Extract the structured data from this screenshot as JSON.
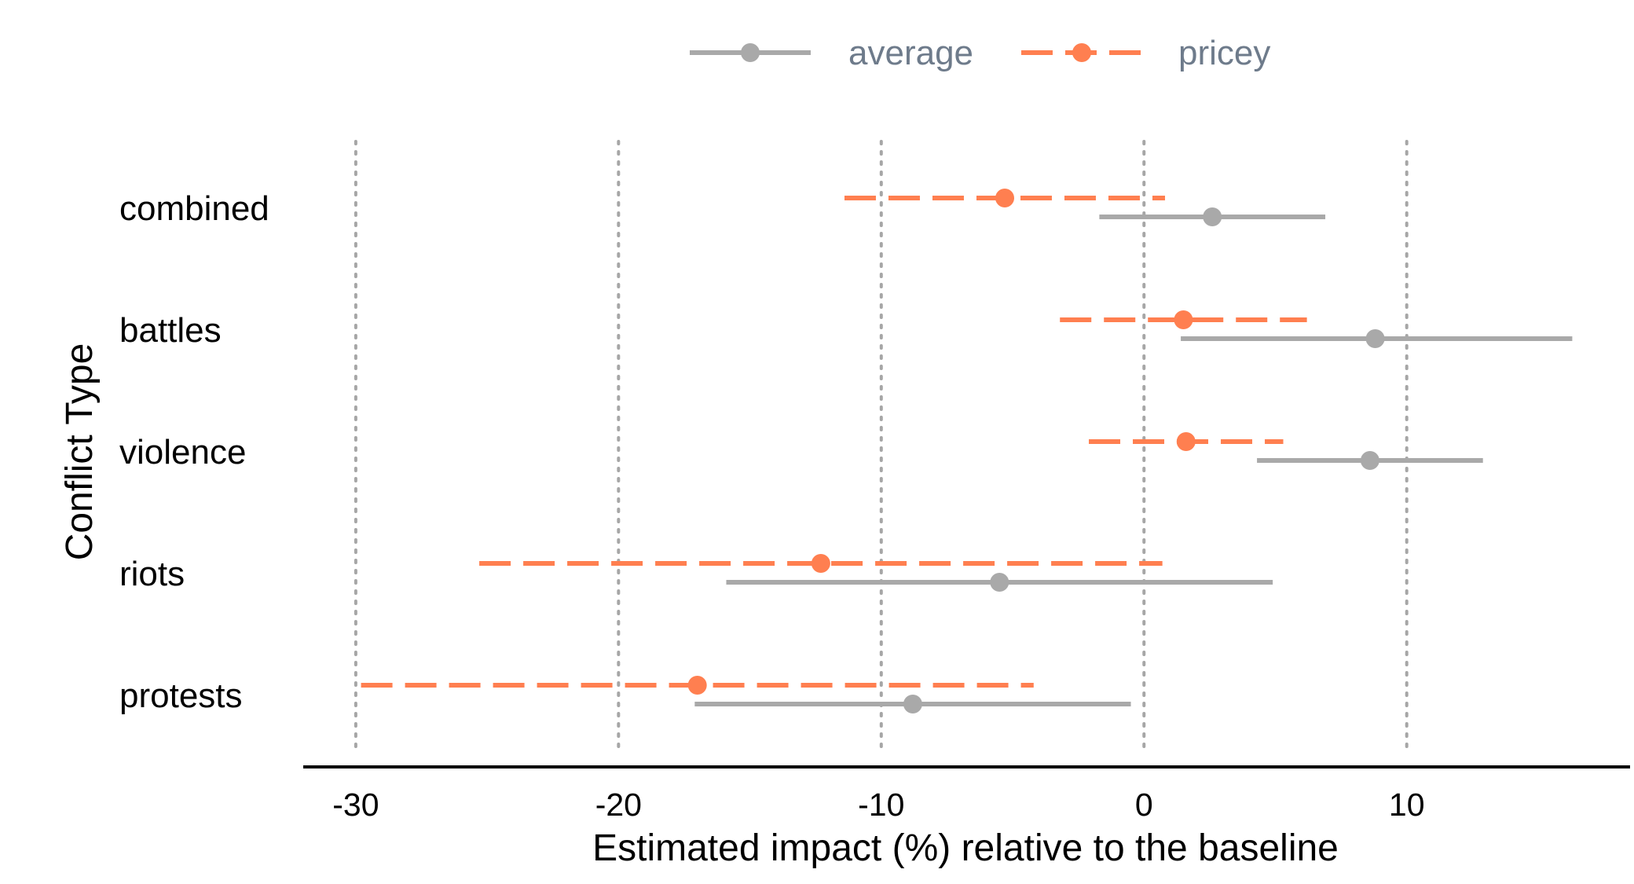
{
  "chart_data": {
    "type": "dot-interval",
    "xlabel": "Estimated impact (%) relative to the baseline",
    "ylabel": "Conflict Type",
    "xlim": [
      -32,
      18.5
    ],
    "xticks": [
      -30,
      -20,
      -10,
      0,
      10
    ],
    "xtick_labels": [
      "-30",
      "-20",
      "-10",
      "0",
      "10"
    ],
    "grid": "vertical dotted",
    "legend_position": "top",
    "categories": [
      "combined",
      "battles",
      "violence",
      "riots",
      "protests"
    ],
    "series": [
      {
        "name": "average",
        "color": "#a9a9a9",
        "line_style": "solid",
        "points": [
          {
            "category": "combined",
            "estimate": 2.6,
            "low": -1.7,
            "high": 6.9
          },
          {
            "category": "battles",
            "estimate": 8.8,
            "low": 1.4,
            "high": 16.3
          },
          {
            "category": "violence",
            "estimate": 8.6,
            "low": 4.3,
            "high": 12.9
          },
          {
            "category": "riots",
            "estimate": -5.5,
            "low": -15.9,
            "high": 4.9
          },
          {
            "category": "protests",
            "estimate": -8.8,
            "low": -17.1,
            "high": -0.5
          }
        ]
      },
      {
        "name": "pricey",
        "color": "#ff7f50",
        "line_style": "dashed",
        "points": [
          {
            "category": "combined",
            "estimate": -5.3,
            "low": -11.4,
            "high": 0.8
          },
          {
            "category": "battles",
            "estimate": 1.5,
            "low": -3.2,
            "high": 6.2
          },
          {
            "category": "violence",
            "estimate": 1.6,
            "low": -2.1,
            "high": 5.3
          },
          {
            "category": "riots",
            "estimate": -12.3,
            "low": -25.3,
            "high": 0.7
          },
          {
            "category": "protests",
            "estimate": -17.0,
            "low": -29.8,
            "high": -4.2
          }
        ]
      }
    ]
  }
}
